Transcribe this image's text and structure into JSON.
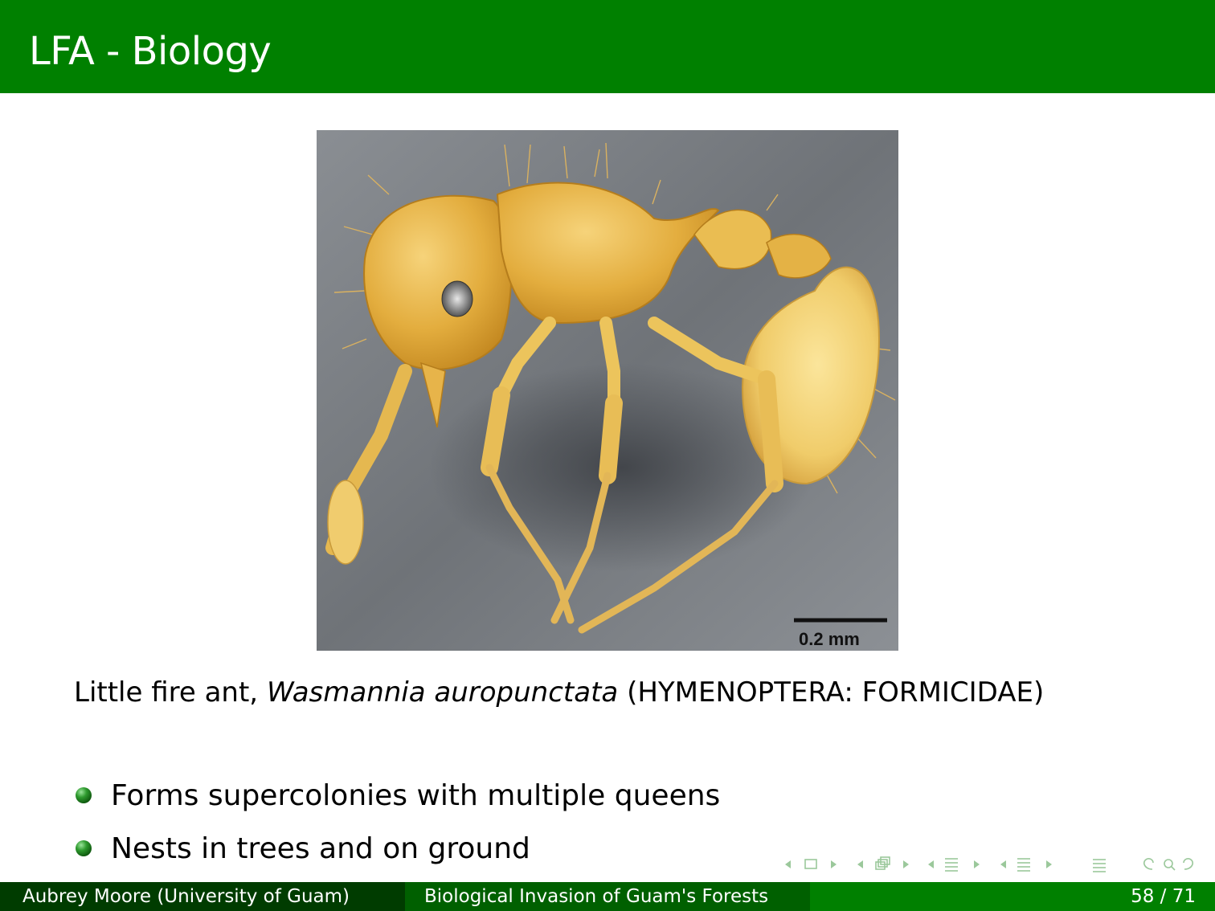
{
  "header": {
    "title": "LFA - Biology"
  },
  "figure": {
    "scale_label": "0.2 mm"
  },
  "caption": {
    "common_name": "Little fire ant, ",
    "species": "Wasmannia auropunctata",
    "taxonomy": " (HYMENOPTERA: FORMICIDAE)"
  },
  "bullets": [
    "Forms supercolonies with multiple queens",
    "Nests in trees and on ground"
  ],
  "footer": {
    "author": "Aubrey Moore  (University of Guam)",
    "title": "Biological Invasion of Guam's Forests",
    "page": "58 / 71"
  },
  "colors": {
    "header": "#008000",
    "footer_dark": "#003c00",
    "footer_mid": "#006000",
    "nav": "#9bc89b"
  },
  "nav_icons": [
    "slide-prev-icon",
    "slide-icon",
    "slide-next-icon",
    "frame-prev-icon",
    "frame-icon",
    "frame-next-icon",
    "section-prev-icon",
    "section-icon",
    "section-next-icon",
    "subsection-prev-icon",
    "subsection-icon",
    "subsection-next-icon",
    "toc-icon",
    "search-icon",
    "undo-icon"
  ]
}
